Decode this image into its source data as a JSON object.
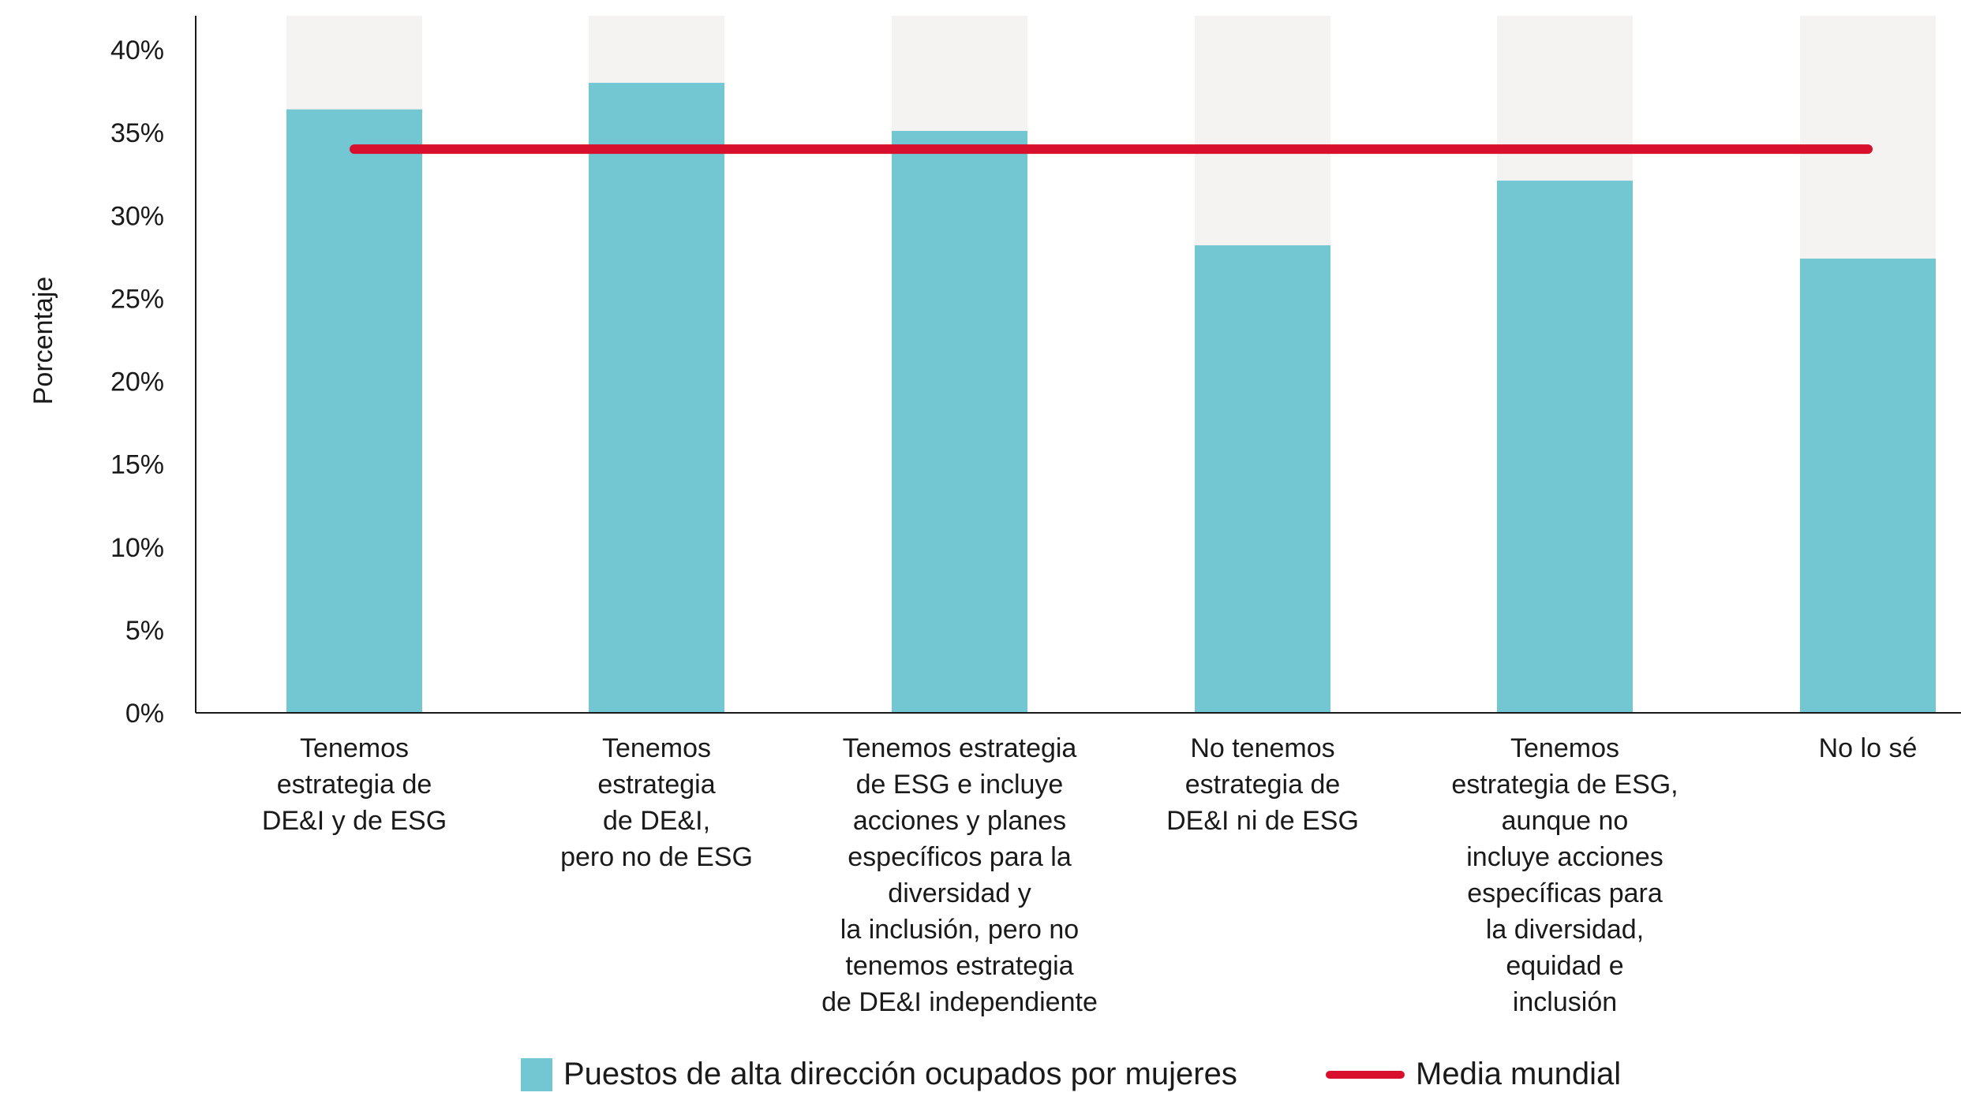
{
  "chart_data": {
    "type": "bar",
    "ylabel": "Porcentaje",
    "ylim": [
      0,
      42
    ],
    "yticks": [
      0,
      5,
      10,
      15,
      20,
      25,
      30,
      35,
      40
    ],
    "ytick_labels": [
      "0%",
      "5%",
      "10%",
      "15%",
      "20%",
      "25%",
      "30%",
      "35%",
      "40%"
    ],
    "categories": [
      [
        "Tenemos",
        "estrategia de",
        "DE&I y de ESG"
      ],
      [
        "Tenemos",
        "estrategia",
        "de DE&I,",
        "pero no de ESG"
      ],
      [
        "Tenemos estrategia",
        "de ESG e incluye",
        "acciones y planes",
        "específicos para la",
        "diversidad y",
        "la inclusión, pero no",
        "tenemos estrategia",
        "de DE&I independiente"
      ],
      [
        "No tenemos",
        "estrategia de",
        "DE&I ni de ESG"
      ],
      [
        "Tenemos",
        "estrategia de ESG,",
        "aunque no",
        "incluye acciones",
        "específicas para",
        "la diversidad,",
        "equidad e",
        "inclusión"
      ],
      [
        "No lo sé"
      ]
    ],
    "series": [
      {
        "name": "Puestos de alta dirección ocupados por mujeres",
        "values": [
          36.4,
          38.0,
          35.1,
          28.2,
          32.1,
          27.4
        ],
        "color": "#72c7d3"
      }
    ],
    "background_bar": {
      "value": 42.5,
      "color": "#f4f3f1"
    },
    "reference_line": {
      "name": "Media mundial",
      "value": 34.0,
      "color": "#d8102e"
    },
    "legend": {
      "bar_label": "Puestos de alta dirección ocupados por mujeres",
      "line_label": "Media mundial",
      "placement": "bottom"
    }
  }
}
